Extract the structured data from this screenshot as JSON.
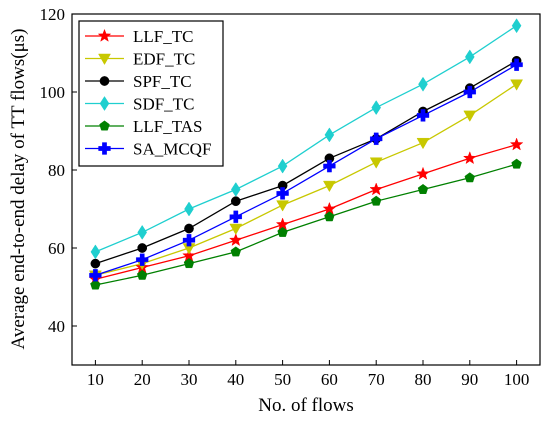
{
  "chart_data": {
    "type": "line",
    "title": "",
    "xlabel": "No. of flows",
    "ylabel": "Average end-to-end delay of TT flows(μs)",
    "x": [
      10,
      20,
      30,
      40,
      50,
      60,
      70,
      80,
      90,
      100
    ],
    "xlim": [
      5,
      105
    ],
    "ylim": [
      30,
      120
    ],
    "yticks": [
      40,
      60,
      80,
      100,
      120
    ],
    "grid": false,
    "legend_position": "top-left",
    "series": [
      {
        "name": "LLF_TC",
        "color": "#ff0000",
        "marker": "star",
        "values": [
          52,
          55,
          58,
          62,
          66,
          70,
          75,
          79,
          83,
          86.5
        ]
      },
      {
        "name": "EDF_TC",
        "color": "#c8c800",
        "marker": "triangle-down",
        "values": [
          53,
          56,
          60,
          65,
          71,
          76,
          82,
          87,
          94,
          102
        ]
      },
      {
        "name": "SPF_TC",
        "color": "#000000",
        "marker": "circle",
        "values": [
          56,
          60,
          65,
          72,
          76,
          83,
          88,
          95,
          101,
          108
        ]
      },
      {
        "name": "SDF_TC",
        "color": "#1fcfcf",
        "marker": "diamond",
        "values": [
          59,
          64,
          70,
          75,
          81,
          89,
          96,
          102,
          109,
          117
        ]
      },
      {
        "name": "LLF_TAS",
        "color": "#008000",
        "marker": "pentagon",
        "values": [
          50.5,
          53,
          56,
          59,
          64,
          68,
          72,
          75,
          78,
          81.5
        ]
      },
      {
        "name": "SA_MCQF",
        "color": "#0000ff",
        "marker": "plus",
        "values": [
          53,
          57,
          62,
          68,
          74,
          81,
          88,
          94,
          100,
          107
        ]
      }
    ]
  }
}
